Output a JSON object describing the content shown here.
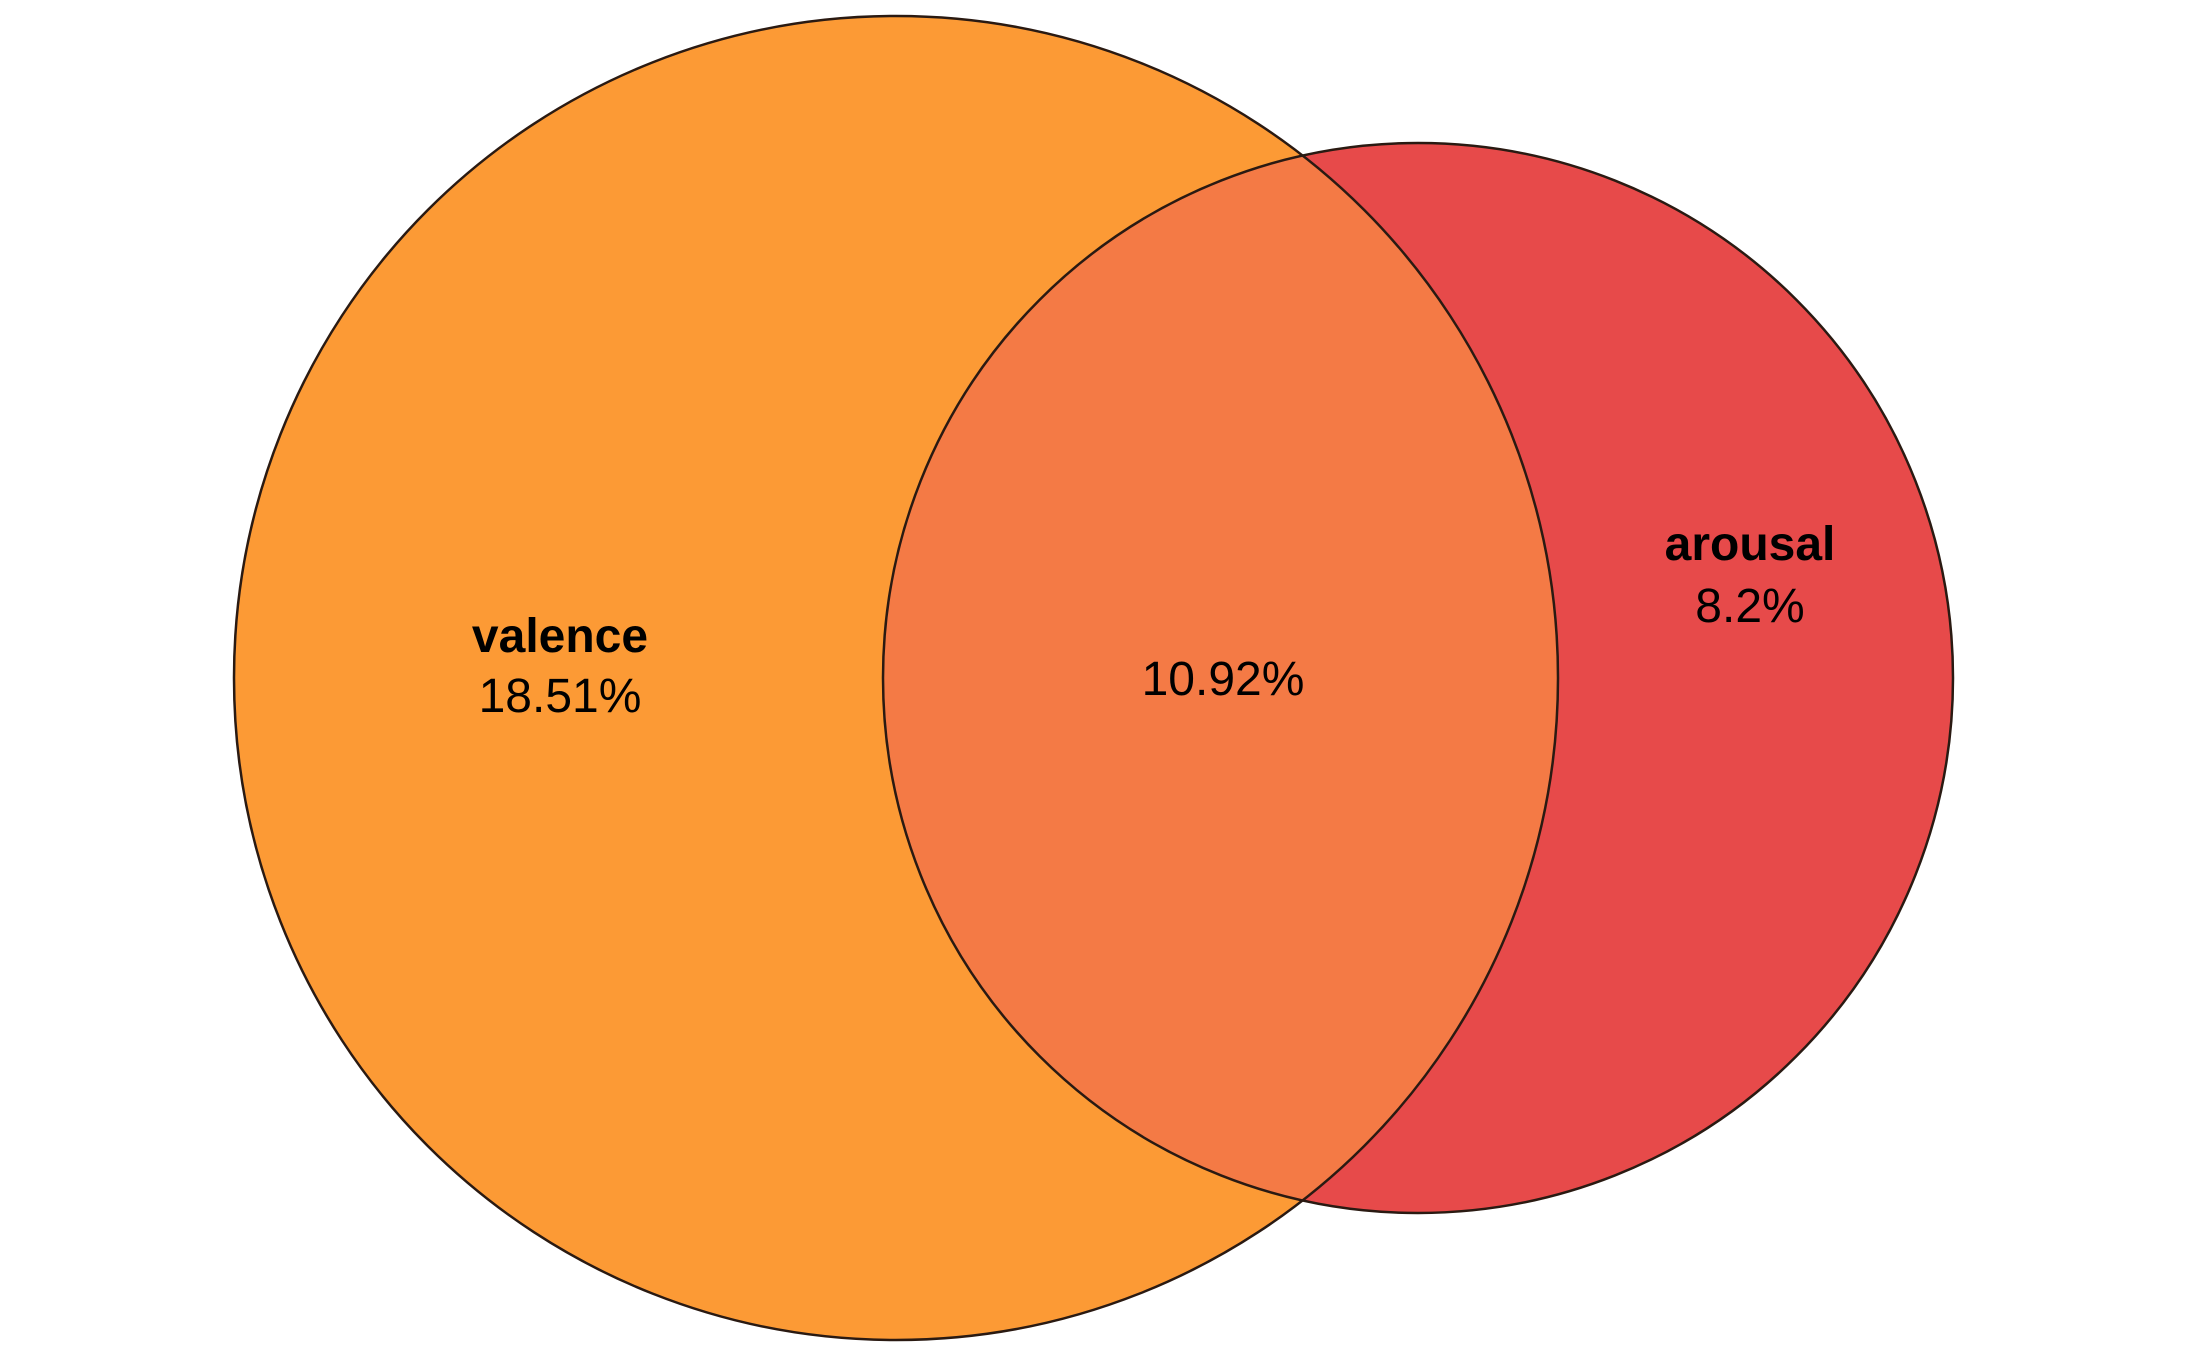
{
  "diagram": {
    "type": "venn",
    "sets": [
      {
        "name": "valence",
        "value": "18.51%",
        "color": "#FC9A35"
      },
      {
        "name": "arousal",
        "value": "8.2%",
        "color": "#E74A4A"
      }
    ],
    "overlap": {
      "value": "10.92%",
      "color": "#F47A45"
    },
    "outline_color": "#2a1a12"
  }
}
